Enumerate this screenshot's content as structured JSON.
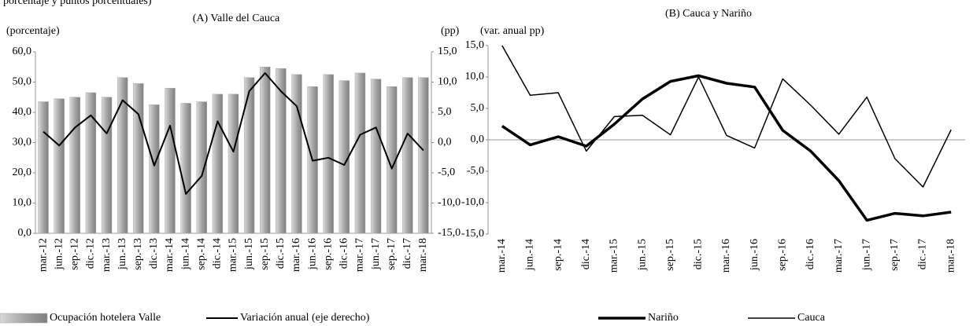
{
  "note": "porcentaje y puntos porcentuales)",
  "chart_data": [
    {
      "type": "bar-line",
      "title": "(A) Valle  del Cauca",
      "y_label": "(porcentaje)",
      "y2_label": "(pp)",
      "categories": [
        "mar.-12",
        "jun.-12",
        "sep.-12",
        "dic.-12",
        "mar.-13",
        "jun.-13",
        "sep.-13",
        "dic.-13",
        "mar.-14",
        "jun.-14",
        "sep.-14",
        "dic.-14",
        "mar.-15",
        "jun.-15",
        "sep.-15",
        "dic.-15",
        "mar.-16",
        "jun.-16",
        "sep.-16",
        "dic.-16",
        "mar.-17",
        "jun.-17",
        "sep.-17",
        "dic.-17",
        "mar.-18"
      ],
      "series": [
        {
          "name": "Ocupación hotelera Valle",
          "type": "bar",
          "color": "#a6a6a6",
          "values": [
            43.5,
            44.5,
            45,
            46.5,
            45,
            51.5,
            49.5,
            42.5,
            48,
            43,
            43.5,
            46,
            46,
            51.5,
            55,
            54.5,
            52.5,
            48.5,
            52.5,
            50.5,
            53,
            51,
            48.5,
            51.5,
            51.5
          ]
        },
        {
          "name": "Variación anual (eje derecho)",
          "type": "line",
          "axis": "y2",
          "color": "#000000",
          "values": [
            1.8,
            -0.5,
            2.5,
            4.5,
            1.5,
            7,
            4.7,
            -3.8,
            2.8,
            -8.5,
            -5.5,
            3.5,
            -1.5,
            8.5,
            11.5,
            8.5,
            6,
            -3,
            -2.5,
            -3.7,
            1.3,
            2.5,
            -4.3,
            1.5,
            -1.3
          ]
        }
      ],
      "ylim": [
        0,
        60
      ],
      "yticks": [
        {
          "value": 0,
          "label": "0,0"
        },
        {
          "value": 10,
          "label": "10,0"
        },
        {
          "value": 20,
          "label": "20,0"
        },
        {
          "value": 30,
          "label": "30,0"
        },
        {
          "value": 40,
          "label": "40,0"
        },
        {
          "value": 50,
          "label": "50,0"
        },
        {
          "value": 60,
          "label": "60,0"
        }
      ],
      "y2lim": [
        -15,
        15
      ],
      "y2ticks": [
        {
          "value": -15,
          "label": "-15,0"
        },
        {
          "value": -10,
          "label": "-10,0"
        },
        {
          "value": -5,
          "label": "-5,0"
        },
        {
          "value": 0,
          "label": "0,0"
        },
        {
          "value": 5,
          "label": "5,0"
        },
        {
          "value": 10,
          "label": "10,0"
        },
        {
          "value": 15,
          "label": "15,0"
        }
      ],
      "grid": false,
      "legend": "bottom"
    },
    {
      "type": "line",
      "title": "(B) Cauca y Nariño",
      "y_label": "(var. anual pp)",
      "categories": [
        "mar.-14",
        "jun.-14",
        "sep.-14",
        "dic.-14",
        "mar.-15",
        "jun.-15",
        "sep.-15",
        "dic.-15",
        "mar.-16",
        "jun.-16",
        "sep.-16",
        "dic.-16",
        "mar.-17",
        "jun.-17",
        "sep.-17",
        "dic.-17",
        "mar.-18"
      ],
      "series": [
        {
          "name": "Nariño",
          "color": "#000000",
          "width": 3.5,
          "values": [
            2.2,
            -0.8,
            0.5,
            -1,
            2.5,
            6.5,
            9.3,
            10.2,
            9,
            8.4,
            1.5,
            -1.8,
            -6.5,
            -12.8,
            -11.7,
            -12.1,
            -11.5
          ]
        },
        {
          "name": "Cauca",
          "color": "#000000",
          "width": 1.5,
          "values": [
            15,
            7.1,
            7.5,
            -1.8,
            3.7,
            3.9,
            0.8,
            10,
            0.7,
            -1.3,
            9.7,
            5.5,
            0.9,
            6.8,
            -3,
            -7.5,
            1.6
          ]
        }
      ],
      "ylim": [
        -15,
        15
      ],
      "yticks": [
        {
          "value": -15,
          "label": "-15,0"
        },
        {
          "value": -10,
          "label": "-10,0"
        },
        {
          "value": -5,
          "label": "-5,0"
        },
        {
          "value": 0,
          "label": "0,0"
        },
        {
          "value": 5,
          "label": "5,0"
        },
        {
          "value": 10,
          "label": "10,0"
        },
        {
          "value": 15,
          "label": "15,0"
        }
      ],
      "grid": false,
      "legend": "bottom"
    }
  ]
}
